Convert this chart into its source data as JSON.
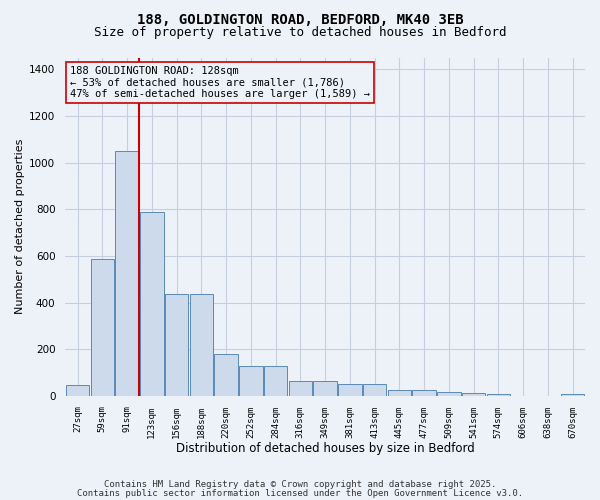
{
  "title_line1": "188, GOLDINGTON ROAD, BEDFORD, MK40 3EB",
  "title_line2": "Size of property relative to detached houses in Bedford",
  "xlabel": "Distribution of detached houses by size in Bedford",
  "ylabel": "Number of detached properties",
  "bar_color": "#ccdaeb",
  "bar_edge_color": "#5a8ab8",
  "bg_color": "#edf2f9",
  "grid_color": "#c5cfe0",
  "vline_color": "#cc0000",
  "annotation_box_color": "#cc0000",
  "categories": [
    "27sqm",
    "59sqm",
    "91sqm",
    "123sqm",
    "156sqm",
    "188sqm",
    "220sqm",
    "252sqm",
    "284sqm",
    "316sqm",
    "349sqm",
    "381sqm",
    "413sqm",
    "445sqm",
    "477sqm",
    "509sqm",
    "541sqm",
    "574sqm",
    "606sqm",
    "638sqm",
    "670sqm"
  ],
  "values": [
    45,
    585,
    1050,
    790,
    435,
    435,
    180,
    130,
    130,
    65,
    65,
    50,
    50,
    25,
    25,
    18,
    12,
    8,
    0,
    0,
    10
  ],
  "ylim": [
    0,
    1450
  ],
  "yticks": [
    0,
    200,
    400,
    600,
    800,
    1000,
    1200,
    1400
  ],
  "vline_x": 2.5,
  "annotation_text_line1": "188 GOLDINGTON ROAD: 128sqm",
  "annotation_text_line2": "← 53% of detached houses are smaller (1,786)",
  "annotation_text_line3": "47% of semi-detached houses are larger (1,589) →",
  "footer_line1": "Contains HM Land Registry data © Crown copyright and database right 2025.",
  "footer_line2": "Contains public sector information licensed under the Open Government Licence v3.0.",
  "title_fontsize": 10,
  "subtitle_fontsize": 9,
  "annot_fontsize": 7.5,
  "footer_fontsize": 6.5
}
